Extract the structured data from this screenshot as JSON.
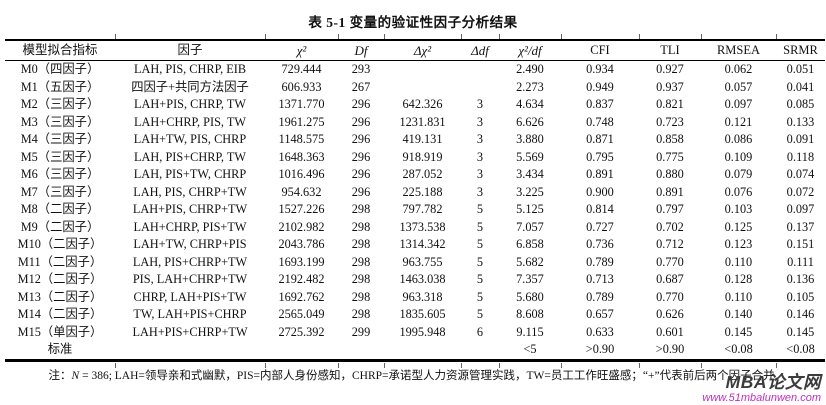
{
  "title": "表 5-1 变量的验证性因子分析结果",
  "table": {
    "columns": [
      "模型拟合指标",
      "因子",
      "χ²",
      "Df",
      "Δχ²",
      "Δdf",
      "χ²/df",
      "CFI",
      "TLI",
      "RMSEA",
      "SRMR"
    ],
    "column_keys": [
      "model",
      "factors",
      "chi2",
      "df",
      "delta-chi2",
      "delta-df",
      "chi2-over-df",
      "cfi",
      "tli",
      "rmsea",
      "srmr"
    ],
    "rows": [
      [
        "M0（四因子）",
        "LAH, PIS, CHRP, EIB",
        "729.444",
        "293",
        "",
        "",
        "2.490",
        "0.934",
        "0.927",
        "0.062",
        "0.051"
      ],
      [
        "M1（五因子）",
        "四因子+共同方法因子",
        "606.933",
        "267",
        "",
        "",
        "2.273",
        "0.949",
        "0.937",
        "0.057",
        "0.041"
      ],
      [
        "M2（三因子）",
        "LAH+PIS, CHRP, TW",
        "1371.770",
        "296",
        "642.326",
        "3",
        "4.634",
        "0.837",
        "0.821",
        "0.097",
        "0.085"
      ],
      [
        "M3（三因子）",
        "LAH+CHRP, PIS, TW",
        "1961.275",
        "296",
        "1231.831",
        "3",
        "6.626",
        "0.748",
        "0.723",
        "0.121",
        "0.133"
      ],
      [
        "M4（三因子）",
        "LAH+TW, PIS, CHRP",
        "1148.575",
        "296",
        "419.131",
        "3",
        "3.880",
        "0.871",
        "0.858",
        "0.086",
        "0.091"
      ],
      [
        "M5（三因子）",
        "LAH, PIS+CHRP, TW",
        "1648.363",
        "296",
        "918.919",
        "3",
        "5.569",
        "0.795",
        "0.775",
        "0.109",
        "0.118"
      ],
      [
        "M6（三因子）",
        "LAH, PIS+TW, CHRP",
        "1016.496",
        "296",
        "287.052",
        "3",
        "3.434",
        "0.891",
        "0.880",
        "0.079",
        "0.074"
      ],
      [
        "M7（三因子）",
        "LAH, PIS, CHRP+TW",
        "954.632",
        "296",
        "225.188",
        "3",
        "3.225",
        "0.900",
        "0.891",
        "0.076",
        "0.072"
      ],
      [
        "M8（二因子）",
        "LAH+PIS, CHRP+TW",
        "1527.226",
        "298",
        "797.782",
        "5",
        "5.125",
        "0.814",
        "0.797",
        "0.103",
        "0.097"
      ],
      [
        "M9（二因子）",
        "LAH+CHRP, PIS+TW",
        "2102.982",
        "298",
        "1373.538",
        "5",
        "7.057",
        "0.727",
        "0.702",
        "0.125",
        "0.137"
      ],
      [
        "M10（二因子）",
        "LAH+TW, CHRP+PIS",
        "2043.786",
        "298",
        "1314.342",
        "5",
        "6.858",
        "0.736",
        "0.712",
        "0.123",
        "0.151"
      ],
      [
        "M11（二因子）",
        "LAH, PIS+CHRP+TW",
        "1693.199",
        "298",
        "963.755",
        "5",
        "5.682",
        "0.789",
        "0.770",
        "0.110",
        "0.111"
      ],
      [
        "M12（二因子）",
        "PIS, LAH+CHRP+TW",
        "2192.482",
        "298",
        "1463.038",
        "5",
        "7.357",
        "0.713",
        "0.687",
        "0.128",
        "0.136"
      ],
      [
        "M13（二因子）",
        "CHRP, LAH+PIS+TW",
        "1692.762",
        "298",
        "963.318",
        "5",
        "5.680",
        "0.789",
        "0.770",
        "0.110",
        "0.105"
      ],
      [
        "M14（二因子）",
        "TW, LAH+PIS+CHRP",
        "2565.049",
        "298",
        "1835.605",
        "5",
        "8.608",
        "0.657",
        "0.626",
        "0.140",
        "0.146"
      ],
      [
        "M15（单因子）",
        "LAH+PIS+CHRP+TW",
        "2725.392",
        "299",
        "1995.948",
        "6",
        "9.115",
        "0.633",
        "0.601",
        "0.145",
        "0.145"
      ],
      [
        "标准",
        "",
        "",
        "",
        "",
        "",
        "<5",
        ">0.90",
        ">0.90",
        "<0.08",
        "<0.08"
      ]
    ]
  },
  "note": {
    "prefix": "注：",
    "n_symbol": "N",
    "rest": " = 386; LAH=领导亲和式幽默，PIS=内部人身份感知，CHRP=承诺型人力资源管理实践，TW=员工工作旺盛感；“+”代表前后两个因子合并."
  },
  "watermark": {
    "name": "MBA论文网",
    "url": "www.51mbalunwen.com"
  },
  "colors": {
    "text": "#111111",
    "border": "#000000",
    "watermark_name": "#3c3c3c",
    "watermark_url": "#c02ec0"
  }
}
